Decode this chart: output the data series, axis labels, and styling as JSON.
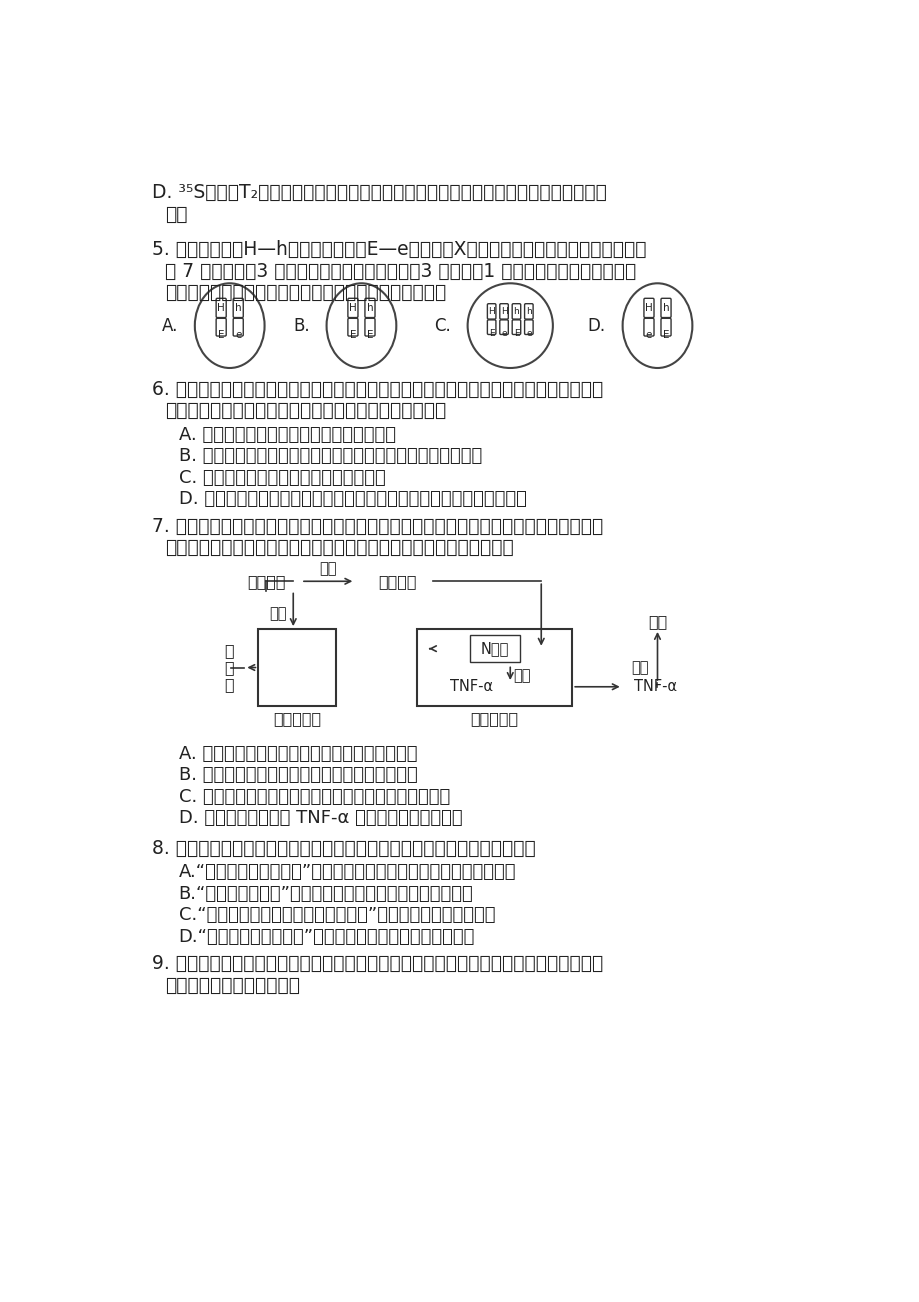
{
  "bg_color": "#ffffff",
  "text_color": "#222222",
  "line_d_text": "D. ³⁵S标记的T₂噬菌体侵染细菌实验中，保温时间过长对放射性检测结果不会产生明显",
  "line_d_text2": "影响",
  "q5_text": "5. 人类血友病（H—h）和红绿色盲（E—e）都是伴X染色体隐性遗传病，若一对夫妇生育",
  "q5_text2": "的 7 个儿子中，3 个同时患血友病和红绿色盲，3 个正常，1 个只患红绿色盲。下列示意",
  "q5_text3": "图所代表的细胞中，最有可能来自孩子母亲的是（　　）",
  "q6_text": "6. 霍乱是一种由霍乱弧菌引起的烈性肠道传染病，患者常出现呢吐、腹泗、脉水、高烧等",
  "q6_text2": "症状，破坏内环境稳态。下列有关叙述正确的是（　　）",
  "q6a": "A. 霍乱弧菌可以刺激浆细胞合成并分泌抗体",
  "q6b": "B. 内环境稳态就是指其中的各种化学成分处于相对稳定的状态",
  "q6c": "C. 霍乱弧菌不会引起人体的非特异性免疫",
  "q6d": "D. 若患者出现呢吐、腹泗、脉水的症状，可静脉注射生理盐水缓解症状",
  "q7_text": "7. 迷走神经是与脑干相连的脑神经，对胃肠踠动和消化腺的分泌活动起促进作用，还可通",
  "q7_text2": "过一系列过程产生抗炎效应，如下图所示。下列说法错误的是（　　）",
  "q7a": "A. 脑干中有调节呼吸和心脏功能的基本活动中枢",
  "q7b": "B. 迷走神经中促进胃肠踠动的神经属于交感神经",
  "q7c": "C. 乙酶胆碱与受体结合可能改变细胞膜对离子的通透性",
  "q7d": "D. 可通过检测体液中 TNF-α 的浓度来评估炎症程度",
  "q8_text": "8. 下列各项是古诗文及其所描述的生物学知识，其中对应错误的是（　　）",
  "q8a": "A.“树林阴糍，鸣声上下”描述了森林生态系统中动物的垂直分层结构",
  "q8b": "B.“菜花黄，蜂闹房”体现消费者对农作物传粉具有重要作用",
  "q8c": "C.“无可奈何花落去，似曾相识燕归来”描述了群落的季节性变化",
  "q8d": "D.“螺蛀有子，蟞崴负之”体现了生物之间存在互利共生关系",
  "q9_text": "9. 如图为某河流生态系统受到生活污水（含大量有机物）轻度污染后的净化作用示意图。",
  "q9_text2": "下列说法正确的是（　　）"
}
